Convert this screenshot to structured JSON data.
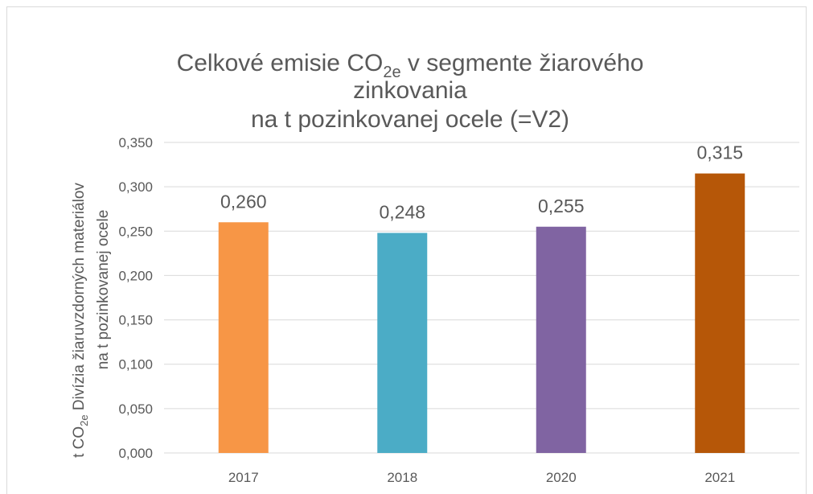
{
  "chart_data": {
    "type": "bar",
    "title": [
      "Celkové emisie CO",
      "2e",
      " v segmente žiarového",
      "zinkovania",
      "na t pozinkovanej ocele (=V2)"
    ],
    "y_label": [
      "t CO",
      "2e",
      " Divízia žiaruvzdorných materiálov",
      "na t pozinkovanej ocele"
    ],
    "categories": [
      "2017",
      "2018",
      "2020",
      "2021"
    ],
    "values": [
      0.26,
      0.248,
      0.255,
      0.315
    ],
    "value_labels": [
      "0,260",
      "0,248",
      "0,255",
      "0,315"
    ],
    "colors": [
      "#f79646",
      "#4bacc6",
      "#8064a2",
      "#b65708"
    ],
    "ylim": [
      0,
      0.35
    ],
    "yticks": [
      {
        "value": 0,
        "label": "0,000"
      },
      {
        "value": 0.05,
        "label": "0,050"
      },
      {
        "value": 0.1,
        "label": "0,100"
      },
      {
        "value": 0.15,
        "label": "0,150"
      },
      {
        "value": 0.2,
        "label": "0,200"
      },
      {
        "value": 0.25,
        "label": "0,250"
      },
      {
        "value": 0.3,
        "label": "0,300"
      },
      {
        "value": 0.35,
        "label": "0,350"
      }
    ],
    "grid": true
  }
}
